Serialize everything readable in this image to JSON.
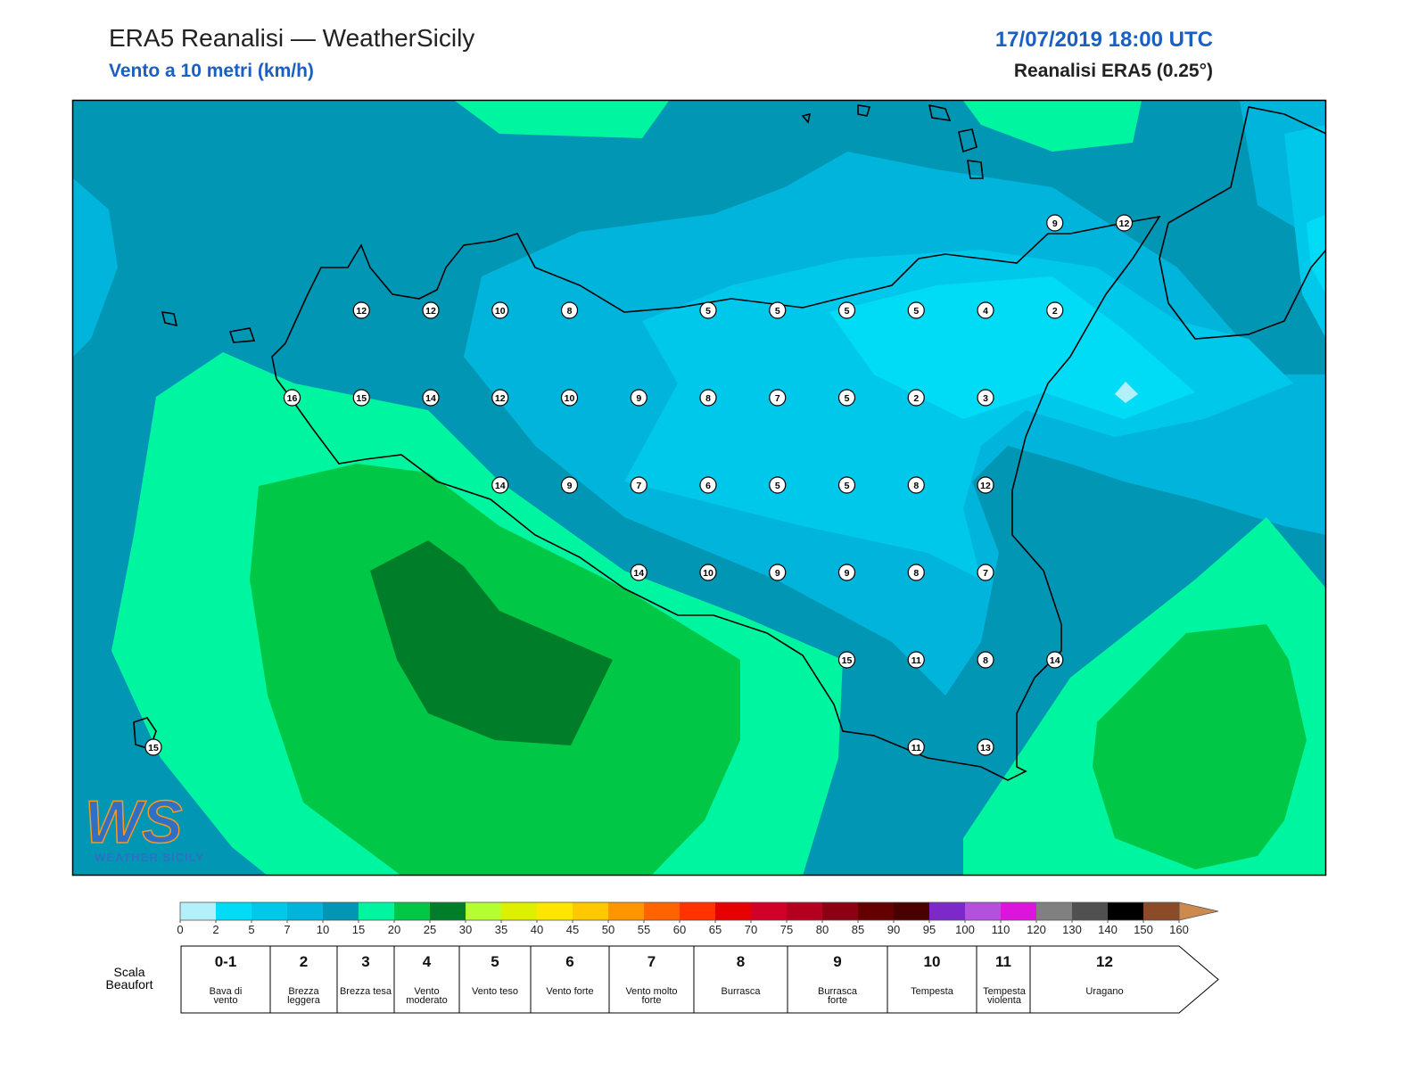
{
  "header": {
    "title": "ERA5 Reanalisi — WeatherSicily",
    "subtitle": "Vento a 10 metri (km/h)",
    "datetime": "17/07/2019 18:00 UTC",
    "source": "Reanalisi ERA5 (0.25°)"
  },
  "logo": {
    "mark": "WS",
    "name": "WEATHER SICILY"
  },
  "wind_grid": [
    [
      null,
      null,
      null,
      null,
      null,
      null,
      null,
      null,
      null,
      null,
      null,
      null,
      null,
      9,
      12
    ],
    [
      null,
      null,
      null,
      12,
      12,
      10,
      8,
      null,
      5,
      5,
      5,
      5,
      4,
      2,
      null
    ],
    [
      null,
      null,
      16,
      15,
      14,
      12,
      10,
      9,
      8,
      7,
      5,
      2,
      3,
      null,
      null
    ],
    [
      null,
      null,
      null,
      null,
      null,
      14,
      9,
      7,
      6,
      5,
      5,
      8,
      12,
      null,
      null
    ],
    [
      null,
      null,
      null,
      null,
      null,
      null,
      null,
      14,
      10,
      9,
      9,
      8,
      7,
      null,
      null
    ],
    [
      null,
      null,
      null,
      null,
      null,
      null,
      null,
      null,
      null,
      null,
      15,
      11,
      8,
      14,
      null
    ],
    [
      15,
      null,
      null,
      null,
      null,
      null,
      null,
      null,
      null,
      null,
      null,
      11,
      13,
      null,
      null
    ]
  ],
  "colorbar": {
    "ticks": [
      0,
      2,
      5,
      7,
      10,
      15,
      20,
      25,
      30,
      35,
      40,
      45,
      50,
      55,
      60,
      65,
      70,
      75,
      80,
      85,
      90,
      95,
      100,
      110,
      120,
      130,
      140,
      150,
      160
    ],
    "colors": [
      "#b4f0fa",
      "#00dcf5",
      "#00c8eb",
      "#00b4dc",
      "#0096b4",
      "#00f5a0",
      "#00c846",
      "#007d28",
      "#b4ff32",
      "#dcf000",
      "#ffe600",
      "#ffc800",
      "#ff9600",
      "#ff6400",
      "#ff3200",
      "#e60000",
      "#d20028",
      "#b4001e",
      "#8c0014",
      "#640000",
      "#4a0000",
      "#7d28c8",
      "#b450dc",
      "#dc14dc",
      "#808080",
      "#505050",
      "#000000",
      "#8b4b28"
    ],
    "overflow_color": "#cd8a4e"
  },
  "beaufort": {
    "label": "Scala Beaufort",
    "levels": [
      {
        "force": "0-1",
        "description": "Bava di vento"
      },
      {
        "force": 2,
        "description": "Brezza leggera"
      },
      {
        "force": 3,
        "description": "Brezza tesa"
      },
      {
        "force": 4,
        "description": "Vento moderato"
      },
      {
        "force": 5,
        "description": "Vento teso"
      },
      {
        "force": 6,
        "description": "Vento forte"
      },
      {
        "force": 7,
        "description": "Vento molto forte"
      },
      {
        "force": 8,
        "description": "Burrasca"
      },
      {
        "force": 9,
        "description": "Burrasca forte"
      },
      {
        "force": 10,
        "description": "Tempesta"
      },
      {
        "force": 11,
        "description": "Tempesta violenta"
      },
      {
        "force": 12,
        "description": "Uragano"
      }
    ]
  }
}
